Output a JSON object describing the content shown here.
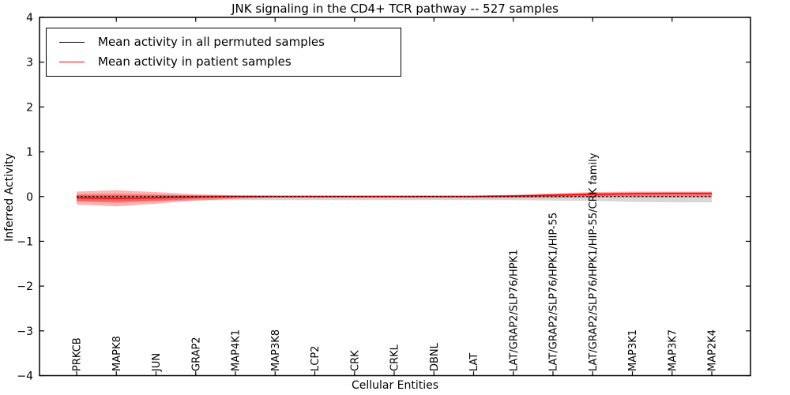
{
  "chart_data": {
    "type": "line",
    "title": "JNK signaling in the CD4+ TCR pathway -- 527 samples",
    "xlabel": "Cellular Entities",
    "ylabel": "Inferred Activity",
    "ylim": [
      -4,
      4
    ],
    "yticks": [
      4,
      3,
      2,
      1,
      0,
      -1,
      -2,
      -3,
      -4
    ],
    "ytick_labels": [
      "4",
      "3",
      "2",
      "1",
      "0",
      "−1",
      "−2",
      "−3",
      "−4"
    ],
    "grid": false,
    "legend_position": "upper left",
    "categories": [
      "PRKCB",
      "MAPK8",
      "JUN",
      "GRAP2",
      "MAP4K1",
      "MAP3K8",
      "LCP2",
      "CRK",
      "CRKL",
      "DBNL",
      "LAT",
      "LAT/GRAP2/SLP76/HPK1",
      "LAT/GRAP2/SLP76/HPK1/HIP-55",
      "LAT/GRAP2/SLP76/HPK1/HIP-55/CRK family",
      "MAP3K1",
      "MAP3K7",
      "MAP2K4"
    ],
    "series": [
      {
        "name": "Mean activity in all permuted samples",
        "color": "#000000",
        "line_style": "dashed",
        "values": [
          0,
          0,
          0,
          0,
          0,
          0,
          0,
          0,
          0,
          0,
          0,
          0,
          0,
          0,
          0,
          0,
          0
        ],
        "band_upper": [
          0.03,
          0.03,
          0.03,
          0.03,
          0.03,
          0.03,
          0.03,
          0.03,
          0.03,
          0.03,
          0.03,
          0.03,
          0.03,
          0.03,
          0.03,
          0.03,
          0.03
        ],
        "band_lower": [
          -0.1,
          -0.11,
          -0.1,
          -0.09,
          -0.08,
          -0.08,
          -0.08,
          -0.08,
          -0.08,
          -0.08,
          -0.08,
          -0.08,
          -0.09,
          -0.1,
          -0.12,
          -0.13,
          -0.13
        ],
        "band_color": "rgba(110,110,110,0.28)"
      },
      {
        "name": "Mean activity in patient samples",
        "color": "#ff0000",
        "line_style": "solid",
        "values": [
          -0.03,
          -0.04,
          -0.03,
          -0.01,
          0.0,
          0.0,
          0.0,
          0.0,
          0.0,
          0.0,
          0.0,
          0.01,
          0.03,
          0.05,
          0.06,
          0.07,
          0.07
        ],
        "band_upper": [
          0.11,
          0.14,
          0.1,
          0.05,
          0.03,
          0.02,
          0.02,
          0.02,
          0.02,
          0.02,
          0.02,
          0.04,
          0.07,
          0.1,
          0.11,
          0.11,
          0.11
        ],
        "band_lower": [
          -0.18,
          -0.22,
          -0.16,
          -0.09,
          -0.05,
          -0.03,
          -0.03,
          -0.03,
          -0.03,
          -0.03,
          -0.03,
          -0.03,
          -0.03,
          -0.02,
          -0.02,
          -0.02,
          -0.02
        ],
        "band_color": "rgba(255,0,0,0.30)"
      }
    ]
  }
}
